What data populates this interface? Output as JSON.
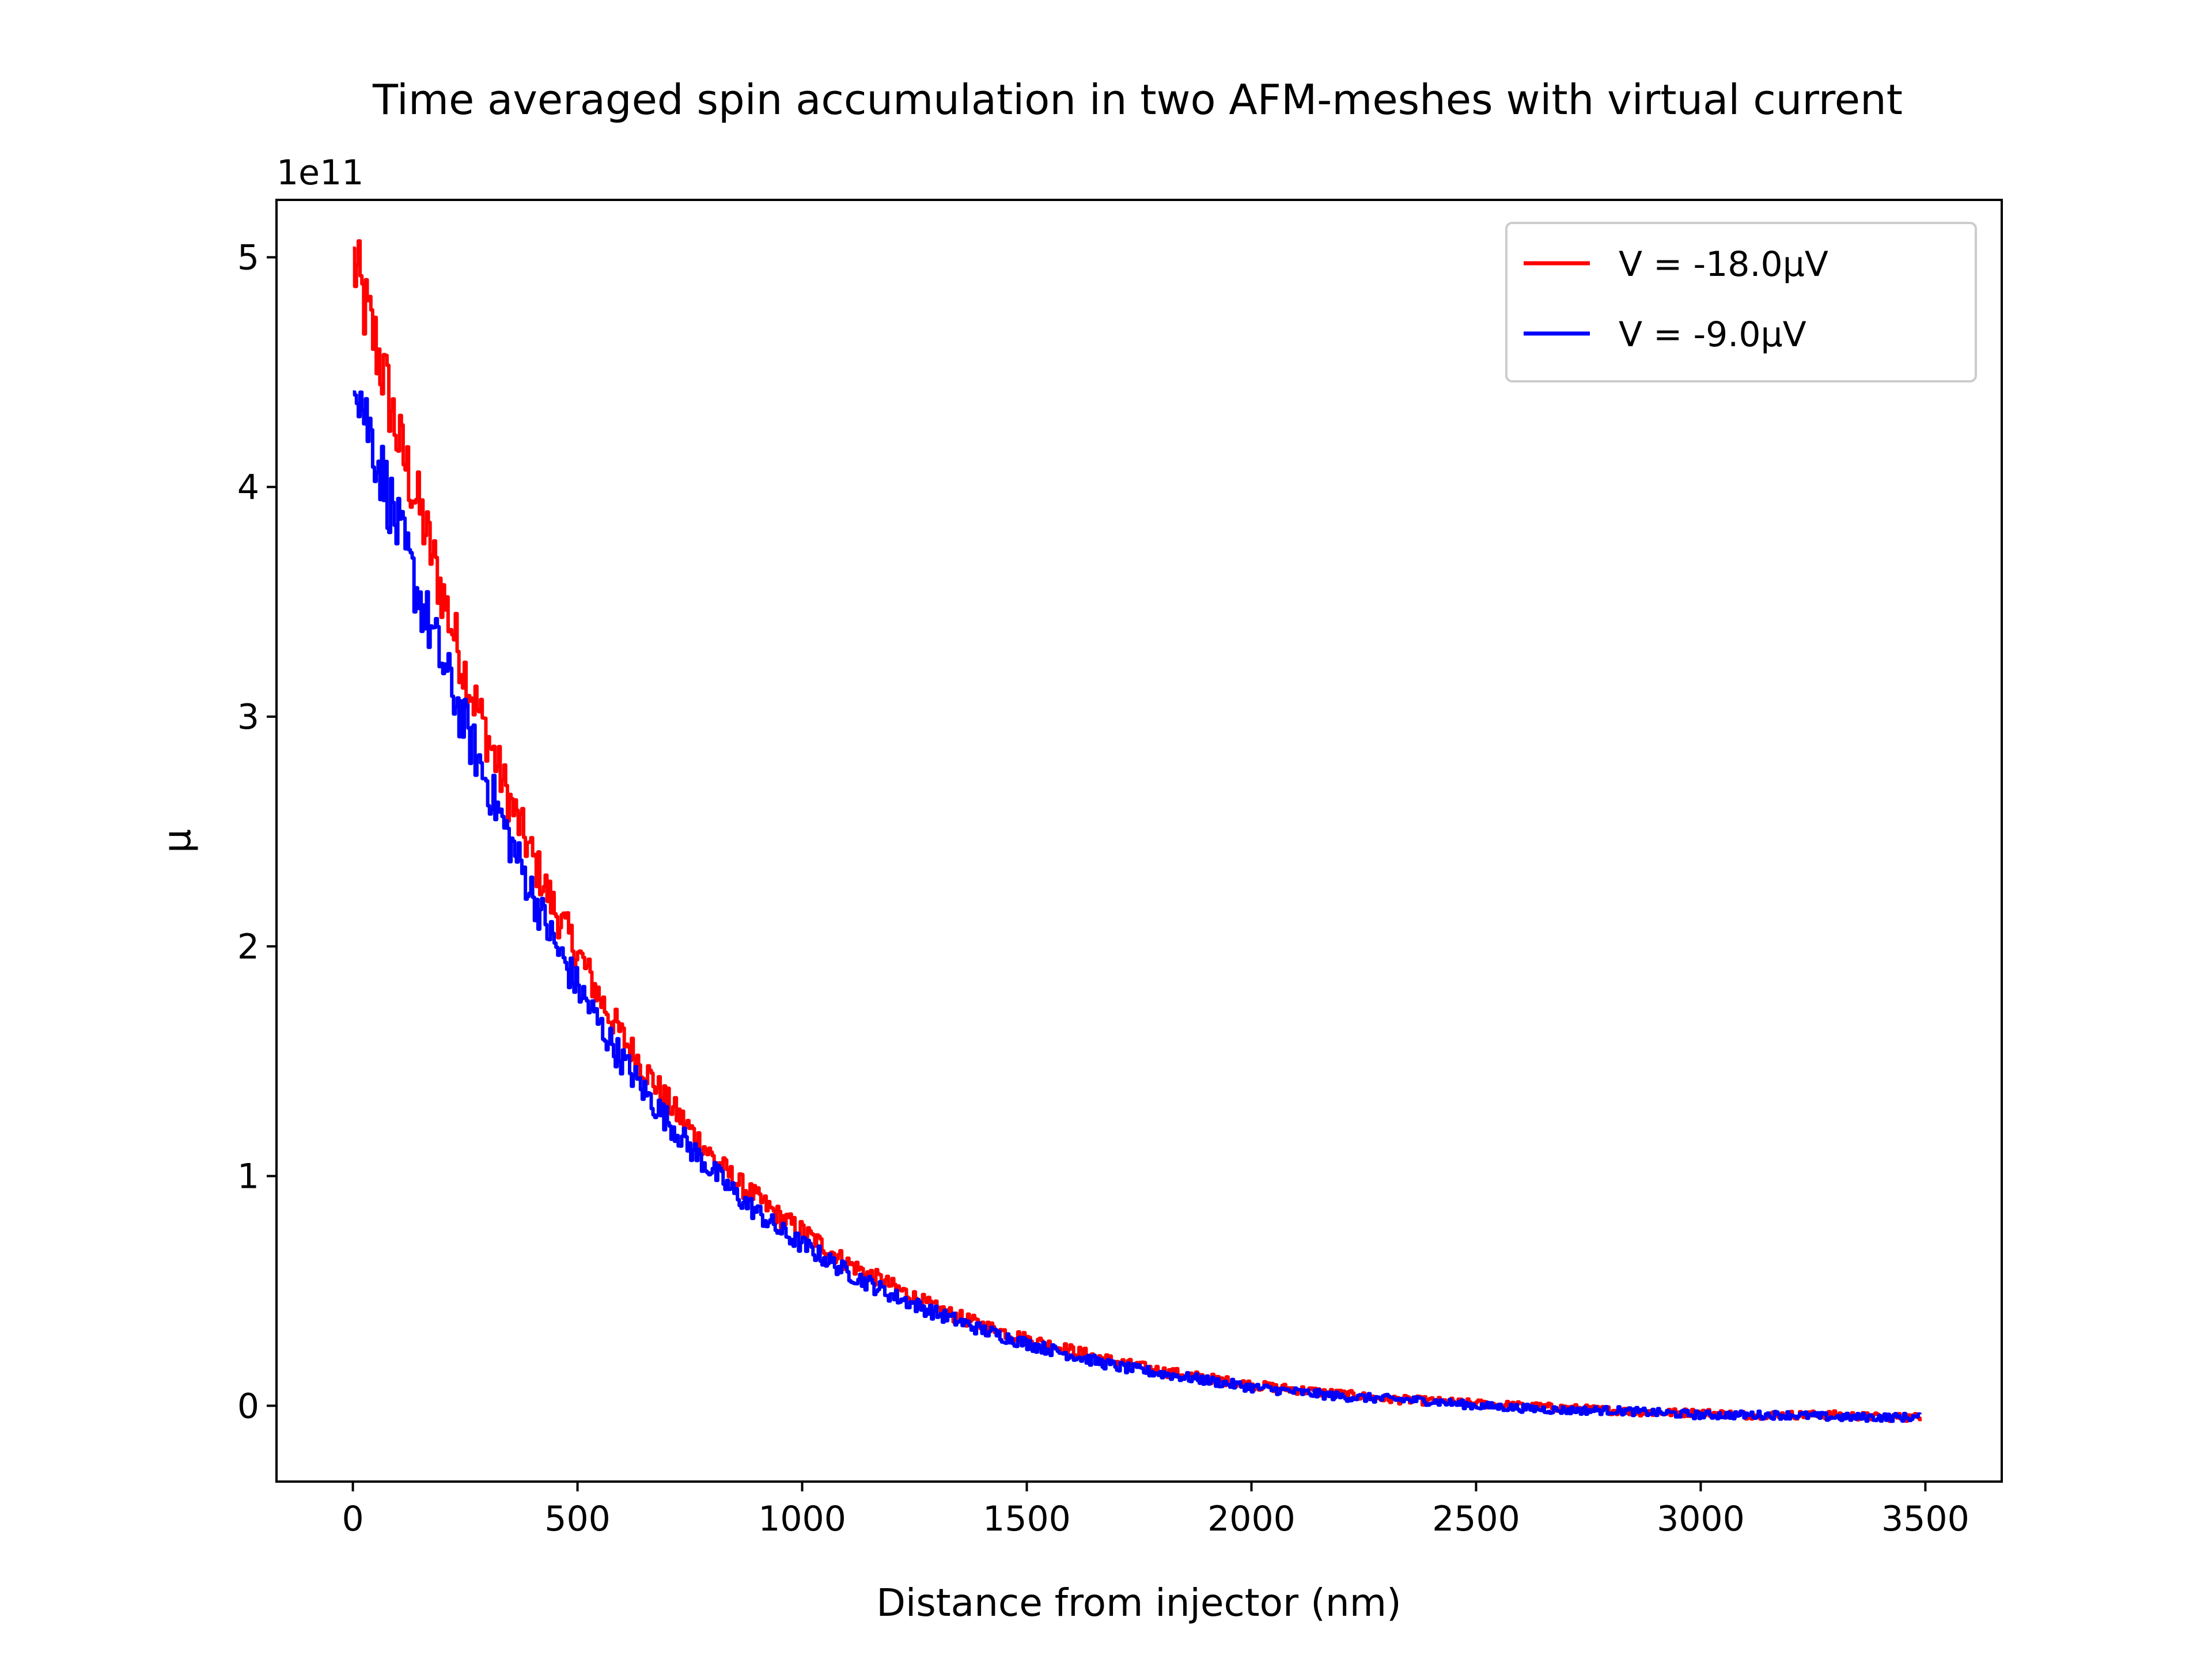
{
  "chart_data": {
    "type": "line",
    "title": "Time averaged spin accumulation in two AFM-meshes with virtual current",
    "xlabel": "Distance from injector (nm)",
    "ylabel": "μ",
    "y_offset_label": "1e11",
    "y_scale": 100000000000.0,
    "xlim": [
      -170,
      3670
    ],
    "ylim": [
      -0.33,
      5.25
    ],
    "xticks": [
      0,
      500,
      1000,
      1500,
      2000,
      2500,
      3000,
      3500
    ],
    "xtick_labels": [
      "0",
      "500",
      "1000",
      "1500",
      "2000",
      "2500",
      "3000",
      "3500"
    ],
    "yticks": [
      0,
      1,
      2,
      3,
      4,
      5
    ],
    "ytick_labels": [
      "0",
      "1",
      "2",
      "3",
      "4",
      "5"
    ],
    "grid": false,
    "legend_position": "upper right",
    "x": [
      0,
      25,
      50,
      75,
      100,
      150,
      200,
      250,
      300,
      350,
      400,
      450,
      500,
      550,
      600,
      650,
      700,
      750,
      800,
      850,
      900,
      950,
      1000,
      1100,
      1200,
      1300,
      1400,
      1500,
      1600,
      1700,
      1800,
      1900,
      2000,
      2100,
      2200,
      2300,
      2400,
      2500,
      2600,
      2700,
      2800,
      2900,
      3000,
      3100,
      3200,
      3300,
      3400,
      3490
    ],
    "series": [
      {
        "name": "V = -18.0μV",
        "color": "#ff0000",
        "values": [
          4.98,
          4.78,
          4.62,
          4.42,
          4.2,
          3.88,
          3.52,
          3.18,
          2.9,
          2.62,
          2.38,
          2.15,
          1.97,
          1.77,
          1.6,
          1.46,
          1.32,
          1.2,
          1.08,
          0.98,
          0.9,
          0.82,
          0.76,
          0.62,
          0.52,
          0.42,
          0.35,
          0.29,
          0.24,
          0.19,
          0.15,
          0.12,
          0.09,
          0.07,
          0.05,
          0.03,
          0.02,
          0.01,
          0.0,
          -0.01,
          -0.02,
          -0.03,
          -0.03,
          -0.04,
          -0.04,
          -0.04,
          -0.05,
          -0.05
        ]
      },
      {
        "name": "V = -9.0μV",
        "color": "#0000ff",
        "values": [
          4.55,
          4.32,
          4.15,
          3.98,
          3.8,
          3.5,
          3.22,
          2.95,
          2.7,
          2.45,
          2.22,
          2.0,
          1.82,
          1.65,
          1.5,
          1.36,
          1.24,
          1.12,
          1.02,
          0.92,
          0.84,
          0.76,
          0.7,
          0.58,
          0.48,
          0.4,
          0.33,
          0.27,
          0.22,
          0.17,
          0.14,
          0.11,
          0.08,
          0.06,
          0.04,
          0.03,
          0.02,
          0.0,
          -0.01,
          -0.02,
          -0.02,
          -0.03,
          -0.04,
          -0.04,
          -0.04,
          -0.05,
          -0.05,
          -0.05
        ]
      }
    ]
  }
}
